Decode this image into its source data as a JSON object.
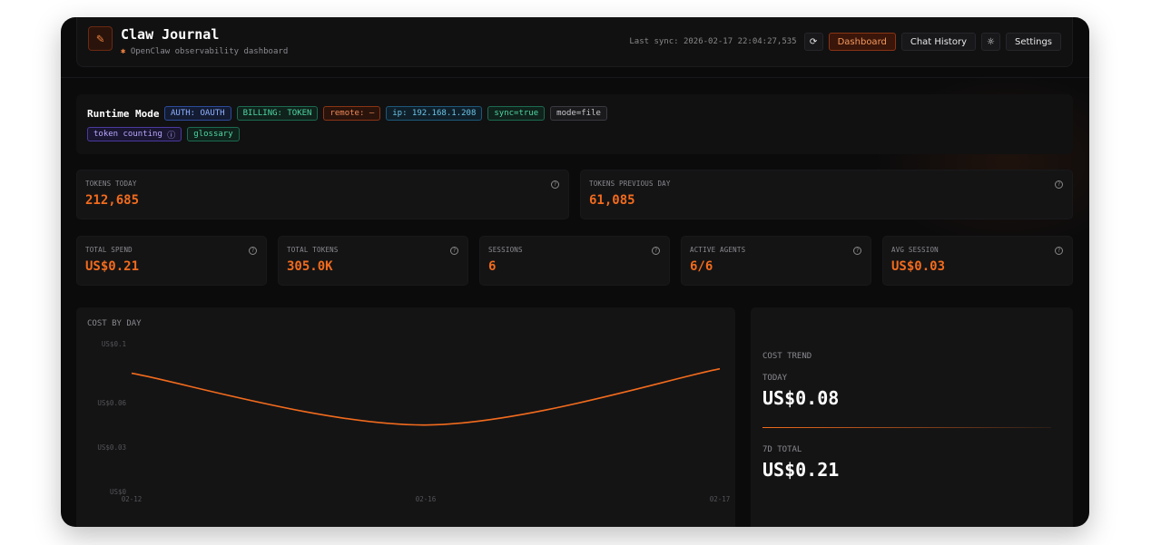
{
  "header": {
    "title": "Claw Journal",
    "subtitle": "OpenClaw observability dashboard",
    "last_sync": "Last sync: 2026-02-17 22:04:27,535",
    "nav": {
      "dashboard": "Dashboard",
      "chat_history": "Chat History",
      "settings": "Settings"
    }
  },
  "runtime": {
    "title": "Runtime Mode",
    "tags": [
      "AUTH: OAUTH",
      "BILLING: TOKEN",
      "remote: –",
      "ip: 192.168.1.208",
      "sync=true",
      "mode=file"
    ],
    "links": [
      "token counting",
      "glossary"
    ]
  },
  "top_stats": [
    {
      "label": "TOKENS TODAY",
      "value": "212,685"
    },
    {
      "label": "TOKENS PREVIOUS DAY",
      "value": "61,085"
    }
  ],
  "stats": [
    {
      "label": "TOTAL SPEND",
      "value": "US$0.21"
    },
    {
      "label": "TOTAL TOKENS",
      "value": "305.0K"
    },
    {
      "label": "SESSIONS",
      "value": "6"
    },
    {
      "label": "ACTIVE AGENTS",
      "value": "6/6"
    },
    {
      "label": "AVG SESSION",
      "value": "US$0.03"
    }
  ],
  "chart_data": {
    "type": "line",
    "title": "COST BY DAY",
    "categories": [
      "02-12",
      "02-16",
      "02-17"
    ],
    "values": [
      0.08,
      0.045,
      0.083
    ],
    "yticks": [
      "US$0",
      "US$0.03",
      "US$0.06",
      "US$0.1"
    ],
    "ytick_values": [
      0,
      0.03,
      0.06,
      0.1
    ],
    "ylim": [
      0,
      0.1
    ],
    "grid": false,
    "color": "#f26b1d"
  },
  "trend": {
    "title": "COST TREND",
    "today_label": "TODAY",
    "today_value": "US$0.08",
    "total_label": "7D TOTAL",
    "total_value": "US$0.21"
  },
  "colors": {
    "accent": "#f26b1d"
  }
}
